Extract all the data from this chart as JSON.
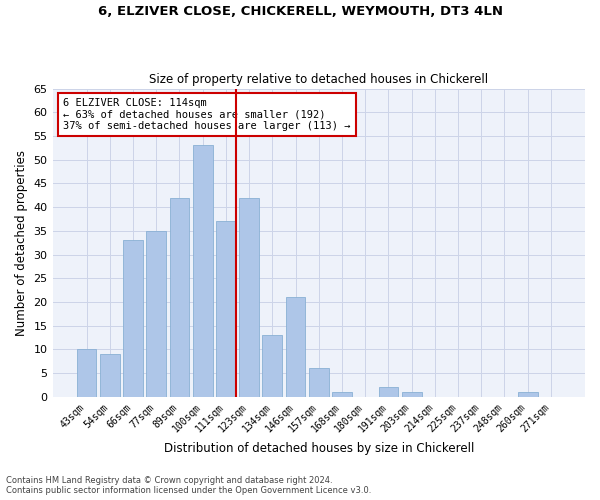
{
  "title1": "6, ELZIVER CLOSE, CHICKERELL, WEYMOUTH, DT3 4LN",
  "title2": "Size of property relative to detached houses in Chickerell",
  "xlabel": "Distribution of detached houses by size in Chickerell",
  "ylabel": "Number of detached properties",
  "categories": [
    "43sqm",
    "54sqm",
    "66sqm",
    "77sqm",
    "89sqm",
    "100sqm",
    "111sqm",
    "123sqm",
    "134sqm",
    "146sqm",
    "157sqm",
    "168sqm",
    "180sqm",
    "191sqm",
    "203sqm",
    "214sqm",
    "225sqm",
    "237sqm",
    "248sqm",
    "260sqm",
    "271sqm"
  ],
  "values": [
    10,
    9,
    33,
    35,
    42,
    53,
    37,
    42,
    13,
    21,
    6,
    1,
    0,
    2,
    1,
    0,
    0,
    0,
    0,
    1,
    0
  ],
  "bar_color": "#aec6e8",
  "bar_edgecolor": "#8ab0d4",
  "vline_color": "#cc0000",
  "annotation_title": "6 ELZIVER CLOSE: 114sqm",
  "annotation_line1": "← 63% of detached houses are smaller (192)",
  "annotation_line2": "37% of semi-detached houses are larger (113) →",
  "annotation_box_edgecolor": "#cc0000",
  "ylim": [
    0,
    65
  ],
  "yticks": [
    0,
    5,
    10,
    15,
    20,
    25,
    30,
    35,
    40,
    45,
    50,
    55,
    60,
    65
  ],
  "grid_color": "#ccd4e8",
  "background_color": "#eef2fa",
  "footer1": "Contains HM Land Registry data © Crown copyright and database right 2024.",
  "footer2": "Contains public sector information licensed under the Open Government Licence v3.0."
}
